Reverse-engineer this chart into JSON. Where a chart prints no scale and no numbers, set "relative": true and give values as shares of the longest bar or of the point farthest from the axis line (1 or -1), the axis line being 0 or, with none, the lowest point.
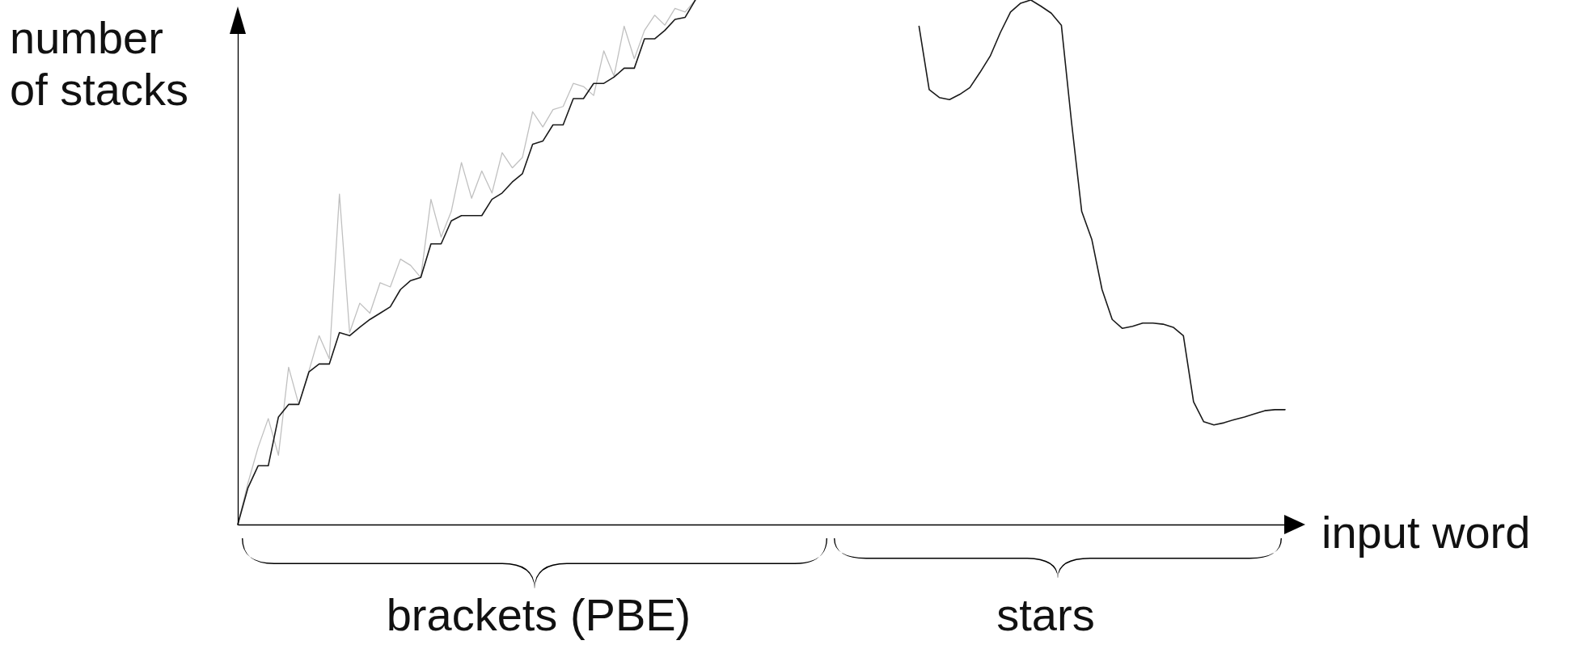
{
  "chart_data": {
    "type": "line",
    "relative": true,
    "xlabel": "input word",
    "ylabel": "number of stacks",
    "annotations": [
      "brackets (PBE)",
      "stars"
    ],
    "categories": [
      null,
      null,
      null,
      null,
      null,
      null,
      null,
      null,
      null,
      null,
      null,
      null,
      null,
      null,
      null,
      null,
      null,
      null,
      null,
      null,
      null,
      null,
      null,
      null,
      null,
      null,
      null,
      null,
      null,
      null,
      null,
      null,
      null,
      null,
      null,
      null,
      null,
      null,
      null,
      null,
      null,
      null,
      null,
      null,
      null,
      null,
      null,
      null,
      null,
      null,
      null,
      null,
      null,
      null,
      null,
      null,
      null,
      null,
      null,
      null,
      null,
      null,
      null,
      null,
      null,
      null,
      null,
      null,
      null,
      null,
      null,
      null,
      null,
      null,
      null,
      null,
      null,
      null,
      null,
      null,
      null,
      null,
      null,
      null,
      null,
      null,
      null,
      null,
      null,
      null,
      null,
      null,
      null,
      null,
      null,
      null,
      null,
      null,
      null,
      null,
      null,
      null,
      null,
      null
    ],
    "series": [
      {
        "color": "#c0c0c0",
        "values": [
          0,
          0.079,
          0.147,
          0.202,
          0.132,
          0.3,
          0.229,
          0.293,
          0.36,
          0.316,
          0.63,
          0.366,
          0.422,
          0.403,
          0.461,
          0.453,
          0.506,
          0.494,
          0.471,
          0.62,
          0.548,
          0.597,
          0.69,
          0.622,
          0.674,
          0.632,
          0.709,
          0.68,
          0.7,
          0.787,
          0.758,
          0.791,
          0.797,
          0.841,
          0.835,
          0.818,
          0.903,
          0.855,
          0.95,
          0.888,
          0.942,
          0.971,
          0.952,
          0.984,
          0.977,
          1,
          null,
          null,
          null,
          null,
          null,
          null,
          null,
          null,
          null,
          null,
          null,
          null,
          null,
          null,
          null,
          null,
          null,
          null,
          null,
          null,
          null,
          null,
          null,
          null,
          null,
          null,
          null,
          null,
          null,
          null,
          null,
          null,
          null,
          null,
          null,
          null,
          null,
          null,
          null,
          null,
          null,
          null,
          null,
          null,
          null,
          null,
          null,
          null,
          null,
          null,
          null,
          null,
          null,
          null,
          null,
          null,
          null,
          null
        ]
      },
      {
        "color": "#1a1a1a",
        "values": [
          0,
          0.07,
          0.112,
          0.112,
          0.205,
          0.229,
          0.229,
          0.291,
          0.306,
          0.306,
          0.366,
          0.36,
          0.376,
          0.391,
          0.403,
          0.415,
          0.448,
          0.465,
          0.471,
          0.535,
          0.535,
          0.579,
          0.589,
          0.589,
          0.589,
          0.62,
          0.632,
          0.653,
          0.669,
          0.725,
          0.731,
          0.762,
          0.762,
          0.812,
          0.812,
          0.841,
          0.841,
          0.853,
          0.87,
          0.87,
          0.926,
          0.926,
          0.942,
          0.963,
          0.967,
          1,
          null,
          null,
          null,
          null,
          null,
          null,
          null,
          null,
          null,
          null,
          null,
          null,
          null,
          null,
          null,
          null,
          null,
          null,
          null,
          null,
          null,
          0.95,
          0.829,
          0.814,
          0.81,
          0.82,
          0.833,
          0.862,
          0.893,
          0.938,
          0.977,
          0.994,
          1,
          0.988,
          0.975,
          0.952,
          0.767,
          0.597,
          0.543,
          0.448,
          0.391,
          0.374,
          0.378,
          0.384,
          0.384,
          0.382,
          0.376,
          0.36,
          0.234,
          0.196,
          0.19,
          0.194,
          0.2,
          0.205,
          0.211,
          0.217,
          0.219,
          0.219
        ]
      }
    ]
  }
}
